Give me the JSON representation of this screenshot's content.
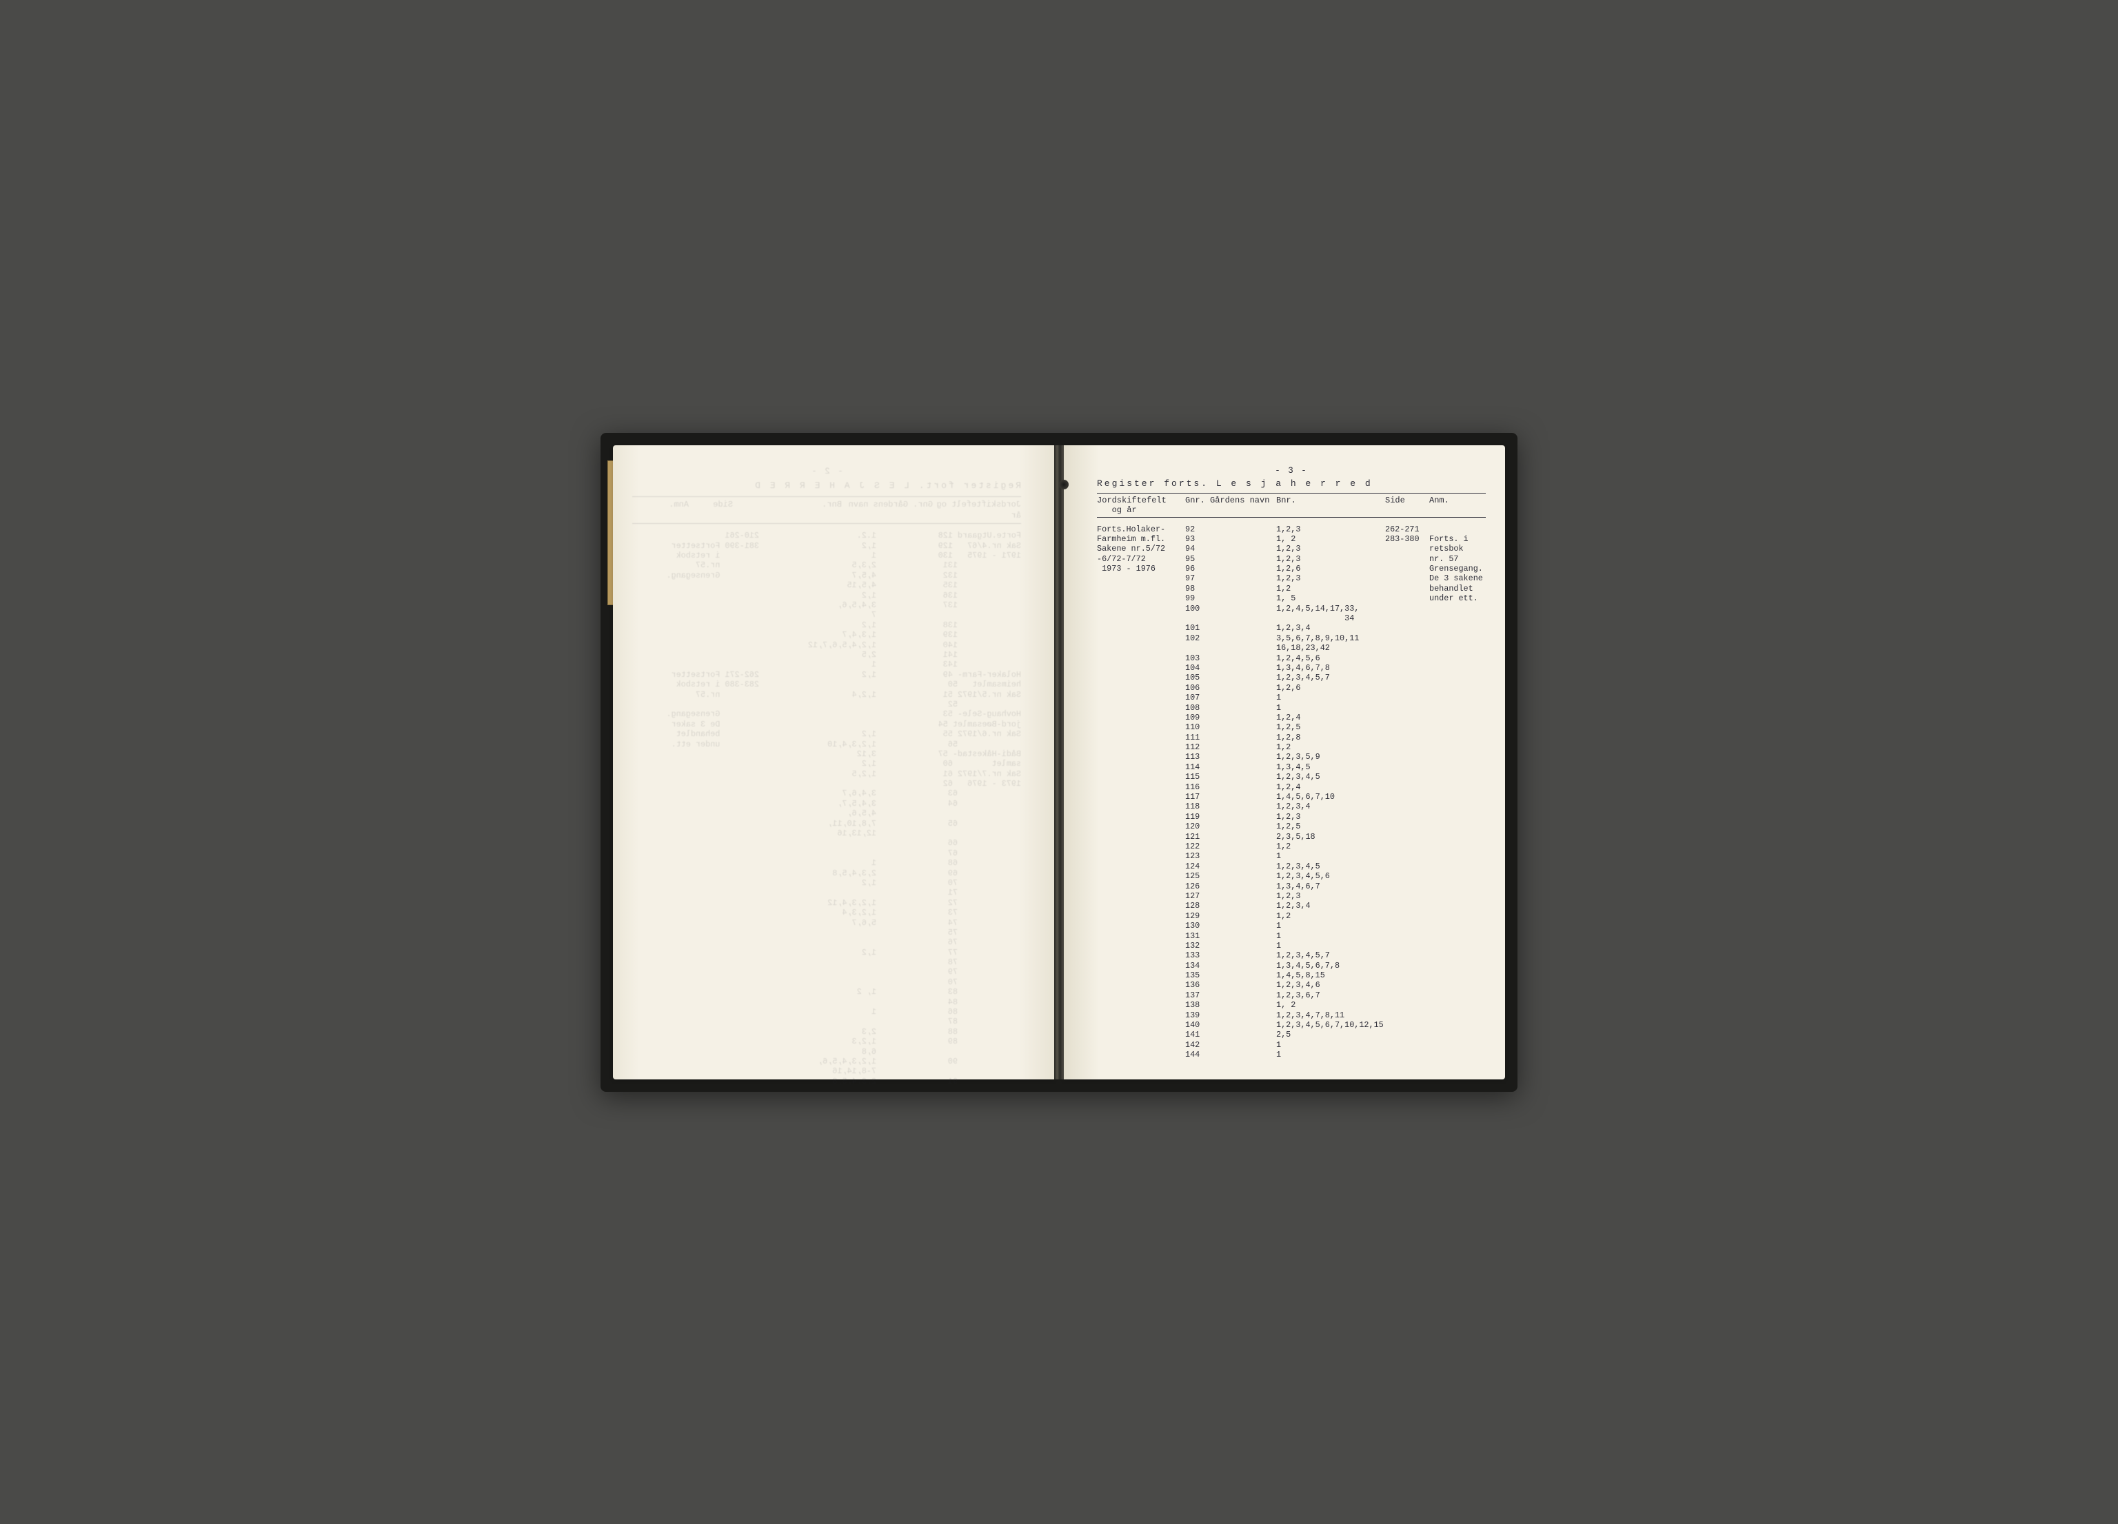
{
  "page_number_label": "- 3 -",
  "register_title": "Register forts.  L e s j a  h e r r e d",
  "left_bleed_title": "Register fort.  L E S J A  H E R R E D",
  "left_bleed_pgnum": "- 2 -",
  "headers": {
    "felt": "Jordskiftefelt\n   og år",
    "gnr": "Gnr.",
    "navn": "Gårdens navn",
    "bnr": "Bnr.",
    "side": "Side",
    "anm": "Anm."
  },
  "felt_block": [
    "Forts.Holaker-",
    "Farmheim m.fl.",
    "Sakene nr.5/72",
    "-6/72-7/72",
    " 1973 - 1976"
  ],
  "rows": [
    {
      "gnr": "92",
      "bnr": "1,2,3",
      "side": "262-271",
      "anm": ""
    },
    {
      "gnr": "93",
      "bnr": "1, 2",
      "side": "283-380",
      "anm": "Forts. i"
    },
    {
      "gnr": "94",
      "bnr": "1,2,3",
      "side": "",
      "anm": "retsbok"
    },
    {
      "gnr": "95",
      "bnr": "1,2,3",
      "side": "",
      "anm": "nr. 57"
    },
    {
      "gnr": "96",
      "bnr": "1,2,6",
      "side": "",
      "anm": "Grensegang."
    },
    {
      "gnr": "97",
      "bnr": "1,2,3",
      "side": "",
      "anm": "De 3 sakene"
    },
    {
      "gnr": "98",
      "bnr": "1,2",
      "side": "",
      "anm": "behandlet"
    },
    {
      "gnr": "99",
      "bnr": "1, 5",
      "side": "",
      "anm": "under ett."
    },
    {
      "gnr": "100",
      "bnr": "1,2,4,5,14,17,33,",
      "side": "",
      "anm": ""
    },
    {
      "gnr": "",
      "bnr": "              34",
      "side": "",
      "anm": ""
    },
    {
      "gnr": "101",
      "bnr": "1,2,3,4",
      "side": "",
      "anm": ""
    },
    {
      "gnr": "102",
      "bnr": "3,5,6,7,8,9,10,11",
      "side": "",
      "anm": ""
    },
    {
      "gnr": "",
      "bnr": "16,18,23,42",
      "side": "",
      "anm": ""
    },
    {
      "gnr": "103",
      "bnr": "1,2,4,5,6",
      "side": "",
      "anm": ""
    },
    {
      "gnr": "104",
      "bnr": "1,3,4,6,7,8",
      "side": "",
      "anm": ""
    },
    {
      "gnr": "105",
      "bnr": "1,2,3,4,5,7",
      "side": "",
      "anm": ""
    },
    {
      "gnr": "106",
      "bnr": "1,2,6",
      "side": "",
      "anm": ""
    },
    {
      "gnr": "107",
      "bnr": "1",
      "side": "",
      "anm": ""
    },
    {
      "gnr": "108",
      "bnr": "1",
      "side": "",
      "anm": ""
    },
    {
      "gnr": "109",
      "bnr": "1,2,4",
      "side": "",
      "anm": ""
    },
    {
      "gnr": "110",
      "bnr": "1,2,5",
      "side": "",
      "anm": ""
    },
    {
      "gnr": "111",
      "bnr": "1,2,8",
      "side": "",
      "anm": ""
    },
    {
      "gnr": "112",
      "bnr": "1,2",
      "side": "",
      "anm": ""
    },
    {
      "gnr": "113",
      "bnr": "1,2,3,5,9",
      "side": "",
      "anm": ""
    },
    {
      "gnr": "114",
      "bnr": "1,3,4,5",
      "side": "",
      "anm": ""
    },
    {
      "gnr": "115",
      "bnr": "1,2,3,4,5",
      "side": "",
      "anm": ""
    },
    {
      "gnr": "116",
      "bnr": "1,2,4",
      "side": "",
      "anm": ""
    },
    {
      "gnr": "117",
      "bnr": "1,4,5,6,7,10",
      "side": "",
      "anm": ""
    },
    {
      "gnr": "118",
      "bnr": "1,2,3,4",
      "side": "",
      "anm": ""
    },
    {
      "gnr": "119",
      "bnr": "1,2,3",
      "side": "",
      "anm": ""
    },
    {
      "gnr": "120",
      "bnr": "1,2,5",
      "side": "",
      "anm": ""
    },
    {
      "gnr": "121",
      "bnr": "2,3,5,18",
      "side": "",
      "anm": ""
    },
    {
      "gnr": "122",
      "bnr": "1,2",
      "side": "",
      "anm": ""
    },
    {
      "gnr": "123",
      "bnr": "1",
      "side": "",
      "anm": ""
    },
    {
      "gnr": "124",
      "bnr": "1,2,3,4,5",
      "side": "",
      "anm": ""
    },
    {
      "gnr": "125",
      "bnr": "1,2,3,4,5,6",
      "side": "",
      "anm": ""
    },
    {
      "gnr": "126",
      "bnr": "1,3,4,6,7",
      "side": "",
      "anm": ""
    },
    {
      "gnr": "127",
      "bnr": "1,2,3",
      "side": "",
      "anm": ""
    },
    {
      "gnr": "128",
      "bnr": "1,2,3,4",
      "side": "",
      "anm": ""
    },
    {
      "gnr": "129",
      "bnr": "1,2",
      "side": "",
      "anm": ""
    },
    {
      "gnr": "130",
      "bnr": "1",
      "side": "",
      "anm": ""
    },
    {
      "gnr": "131",
      "bnr": "1",
      "side": "",
      "anm": ""
    },
    {
      "gnr": "132",
      "bnr": "1",
      "side": "",
      "anm": ""
    },
    {
      "gnr": "133",
      "bnr": "1,2,3,4,5,7",
      "side": "",
      "anm": ""
    },
    {
      "gnr": "134",
      "bnr": "1,3,4,5,6,7,8",
      "side": "",
      "anm": ""
    },
    {
      "gnr": "135",
      "bnr": "1,4,5,8,15",
      "side": "",
      "anm": ""
    },
    {
      "gnr": "136",
      "bnr": "1,2,3,4,6",
      "side": "",
      "anm": ""
    },
    {
      "gnr": "137",
      "bnr": "1,2,3,6,7",
      "side": "",
      "anm": ""
    },
    {
      "gnr": "138",
      "bnr": "1, 2",
      "side": "",
      "anm": ""
    },
    {
      "gnr": "139",
      "bnr": "1,2,3,4,7,8,11",
      "side": "",
      "anm": ""
    },
    {
      "gnr": "140",
      "bnr": "1,2,3,4,5,6,7,10,12,15",
      "side": "",
      "anm": ""
    },
    {
      "gnr": "141",
      "bnr": "2,5",
      "side": "",
      "anm": ""
    },
    {
      "gnr": "142",
      "bnr": "1",
      "side": "",
      "anm": ""
    },
    {
      "gnr": "144",
      "bnr": "1",
      "side": "",
      "anm": ""
    }
  ],
  "left_bleed_rows": [
    {
      "a": "Forte.Utgaard 128",
      "b": "1.2.",
      "c": "210-261"
    },
    {
      "a": "Sak nr.4/67   129",
      "b": "1,2",
      "c": "381-390 Fortsetter"
    },
    {
      "a": "1971 - 1975   130",
      "b": "1",
      "c": "        i retsbok"
    },
    {
      "a": "             131",
      "b": "2,3,5",
      "c": "        nr.57"
    },
    {
      "a": "             132",
      "b": "4,5,7",
      "c": "        Grensegang."
    },
    {
      "a": "             135",
      "b": "4,5,15",
      "c": ""
    },
    {
      "a": "             136",
      "b": "1,2",
      "c": ""
    },
    {
      "a": "             137",
      "b": "3,4,5,6,",
      "c": ""
    },
    {
      "a": "",
      "b": "7",
      "c": ""
    },
    {
      "a": "             138",
      "b": "1,2",
      "c": ""
    },
    {
      "a": "             139",
      "b": "1,3,4,7",
      "c": ""
    },
    {
      "a": "             140",
      "b": "1,2,4,5,6,7,12",
      "c": ""
    },
    {
      "a": "             141",
      "b": "2,5",
      "c": ""
    },
    {
      "a": "             143",
      "b": "1",
      "c": ""
    },
    {
      "a": "",
      "b": "",
      "c": ""
    },
    {
      "a": "Holaker-Farm- 49",
      "b": "1,2",
      "c": "262-271 Fortsetter"
    },
    {
      "a": "heimsamlet   50",
      "b": "",
      "c": "283-380 i retsbok"
    },
    {
      "a": "Sak nr.5/1972 51",
      "b": "1,2,4",
      "c": "        nr.57"
    },
    {
      "a": "             52",
      "b": "",
      "c": ""
    },
    {
      "a": "Hovhaug-Sele- 53",
      "b": "",
      "c": "        Grensegang."
    },
    {
      "a": "jord-Bøesamlet 54",
      "b": "",
      "c": "        De 3 saker"
    },
    {
      "a": "Sak nr.6/1972 55",
      "b": "1,2",
      "c": "        behandlet"
    },
    {
      "a": "             56",
      "b": "1,2,3,4,10",
      "c": "        under ett."
    },
    {
      "a": "Bådi-Håkestad- 57",
      "b": "3,12",
      "c": ""
    },
    {
      "a": "samlet        60",
      "b": "1,2",
      "c": ""
    },
    {
      "a": "Sak nr.7/1972 61",
      "b": "1,2,5",
      "c": ""
    },
    {
      "a": "1973 - 1976   62",
      "b": "",
      "c": ""
    },
    {
      "a": "             63",
      "b": "3,4,6,7",
      "c": ""
    },
    {
      "a": "             64",
      "b": "3,4,5,7,",
      "c": ""
    },
    {
      "a": "",
      "b": "4,5,6,",
      "c": ""
    },
    {
      "a": "             65",
      "b": "7,8,10,11,",
      "c": ""
    },
    {
      "a": "",
      "b": "12,13,16",
      "c": ""
    },
    {
      "a": "             66",
      "b": "",
      "c": ""
    },
    {
      "a": "             67",
      "b": "",
      "c": ""
    },
    {
      "a": "             68",
      "b": "1",
      "c": ""
    },
    {
      "a": "             69",
      "b": "2,3,4,5,8",
      "c": ""
    },
    {
      "a": "             70",
      "b": "1,2",
      "c": ""
    },
    {
      "a": "             71",
      "b": "",
      "c": ""
    },
    {
      "a": "             72",
      "b": "1,2,3,4,12",
      "c": ""
    },
    {
      "a": "             73",
      "b": "1,2,3,4",
      "c": ""
    },
    {
      "a": "             74",
      "b": "5,6,7",
      "c": ""
    },
    {
      "a": "             75",
      "b": "",
      "c": ""
    },
    {
      "a": "             76",
      "b": "",
      "c": ""
    },
    {
      "a": "             77",
      "b": "1,2",
      "c": ""
    },
    {
      "a": "             78",
      "b": "",
      "c": ""
    },
    {
      "a": "             79",
      "b": "",
      "c": ""
    },
    {
      "a": "             70",
      "b": "",
      "c": ""
    },
    {
      "a": "             83",
      "b": "1, 2",
      "c": ""
    },
    {
      "a": "             84",
      "b": "",
      "c": ""
    },
    {
      "a": "             86",
      "b": "1",
      "c": ""
    },
    {
      "a": "             87",
      "b": "",
      "c": ""
    },
    {
      "a": "             88",
      "b": "2,3",
      "c": ""
    },
    {
      "a": "             89",
      "b": "1,2,3",
      "c": ""
    },
    {
      "a": "",
      "b": "6,8",
      "c": ""
    },
    {
      "a": "             90",
      "b": "1,2,3,4,5,6,",
      "c": ""
    },
    {
      "a": "",
      "b": "7-8,14,16",
      "c": ""
    },
    {
      "a": "             91",
      "b": "2,3,4,5,8",
      "c": ""
    }
  ],
  "colors": {
    "paper": "#f5f1e6",
    "ink": "#2e2e38",
    "cover": "#1a1a18",
    "desk": "#4a4a48",
    "tab": "#b89a5e"
  },
  "typography": {
    "family": "Courier New",
    "body_pt": 11.8,
    "title_pt": 13,
    "pgnum_pt": 12.5
  }
}
